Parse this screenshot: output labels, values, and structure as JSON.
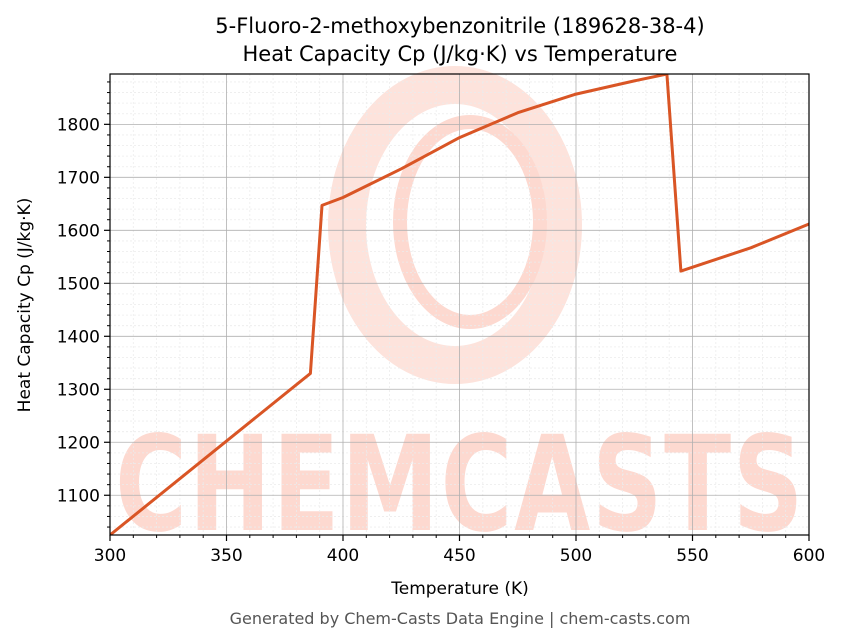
{
  "chart_data": {
    "type": "line",
    "title": "5-Fluoro-2-methoxybenzonitrile (189628-38-4)",
    "subtitle": "Heat Capacity Cp (J/kg·K) vs Temperature",
    "xlabel": "Temperature (K)",
    "ylabel": "Heat Capacity Cp (J/kg·K)",
    "xlim": [
      300,
      600
    ],
    "ylim": [
      1025,
      1895
    ],
    "x_ticks": [
      300,
      350,
      400,
      450,
      500,
      550,
      600
    ],
    "y_ticks": [
      1100,
      1200,
      1300,
      1400,
      1500,
      1600,
      1700,
      1800
    ],
    "grid": true,
    "legend": "none",
    "series": [
      {
        "color": "#d95525",
        "points": [
          [
            300,
            1025
          ],
          [
            386,
            1330
          ],
          [
            391,
            1647
          ],
          [
            400,
            1662
          ],
          [
            425,
            1716
          ],
          [
            450,
            1775
          ],
          [
            475,
            1822
          ],
          [
            500,
            1857
          ],
          [
            525,
            1882
          ],
          [
            539,
            1895
          ],
          [
            545,
            1523
          ],
          [
            575,
            1567
          ],
          [
            600,
            1612
          ]
        ]
      }
    ]
  },
  "watermark": {
    "text": "CHEMCASTS",
    "color": "#fdd9d0"
  },
  "footer": "Generated by Chem-Casts Data Engine | chem-casts.com"
}
